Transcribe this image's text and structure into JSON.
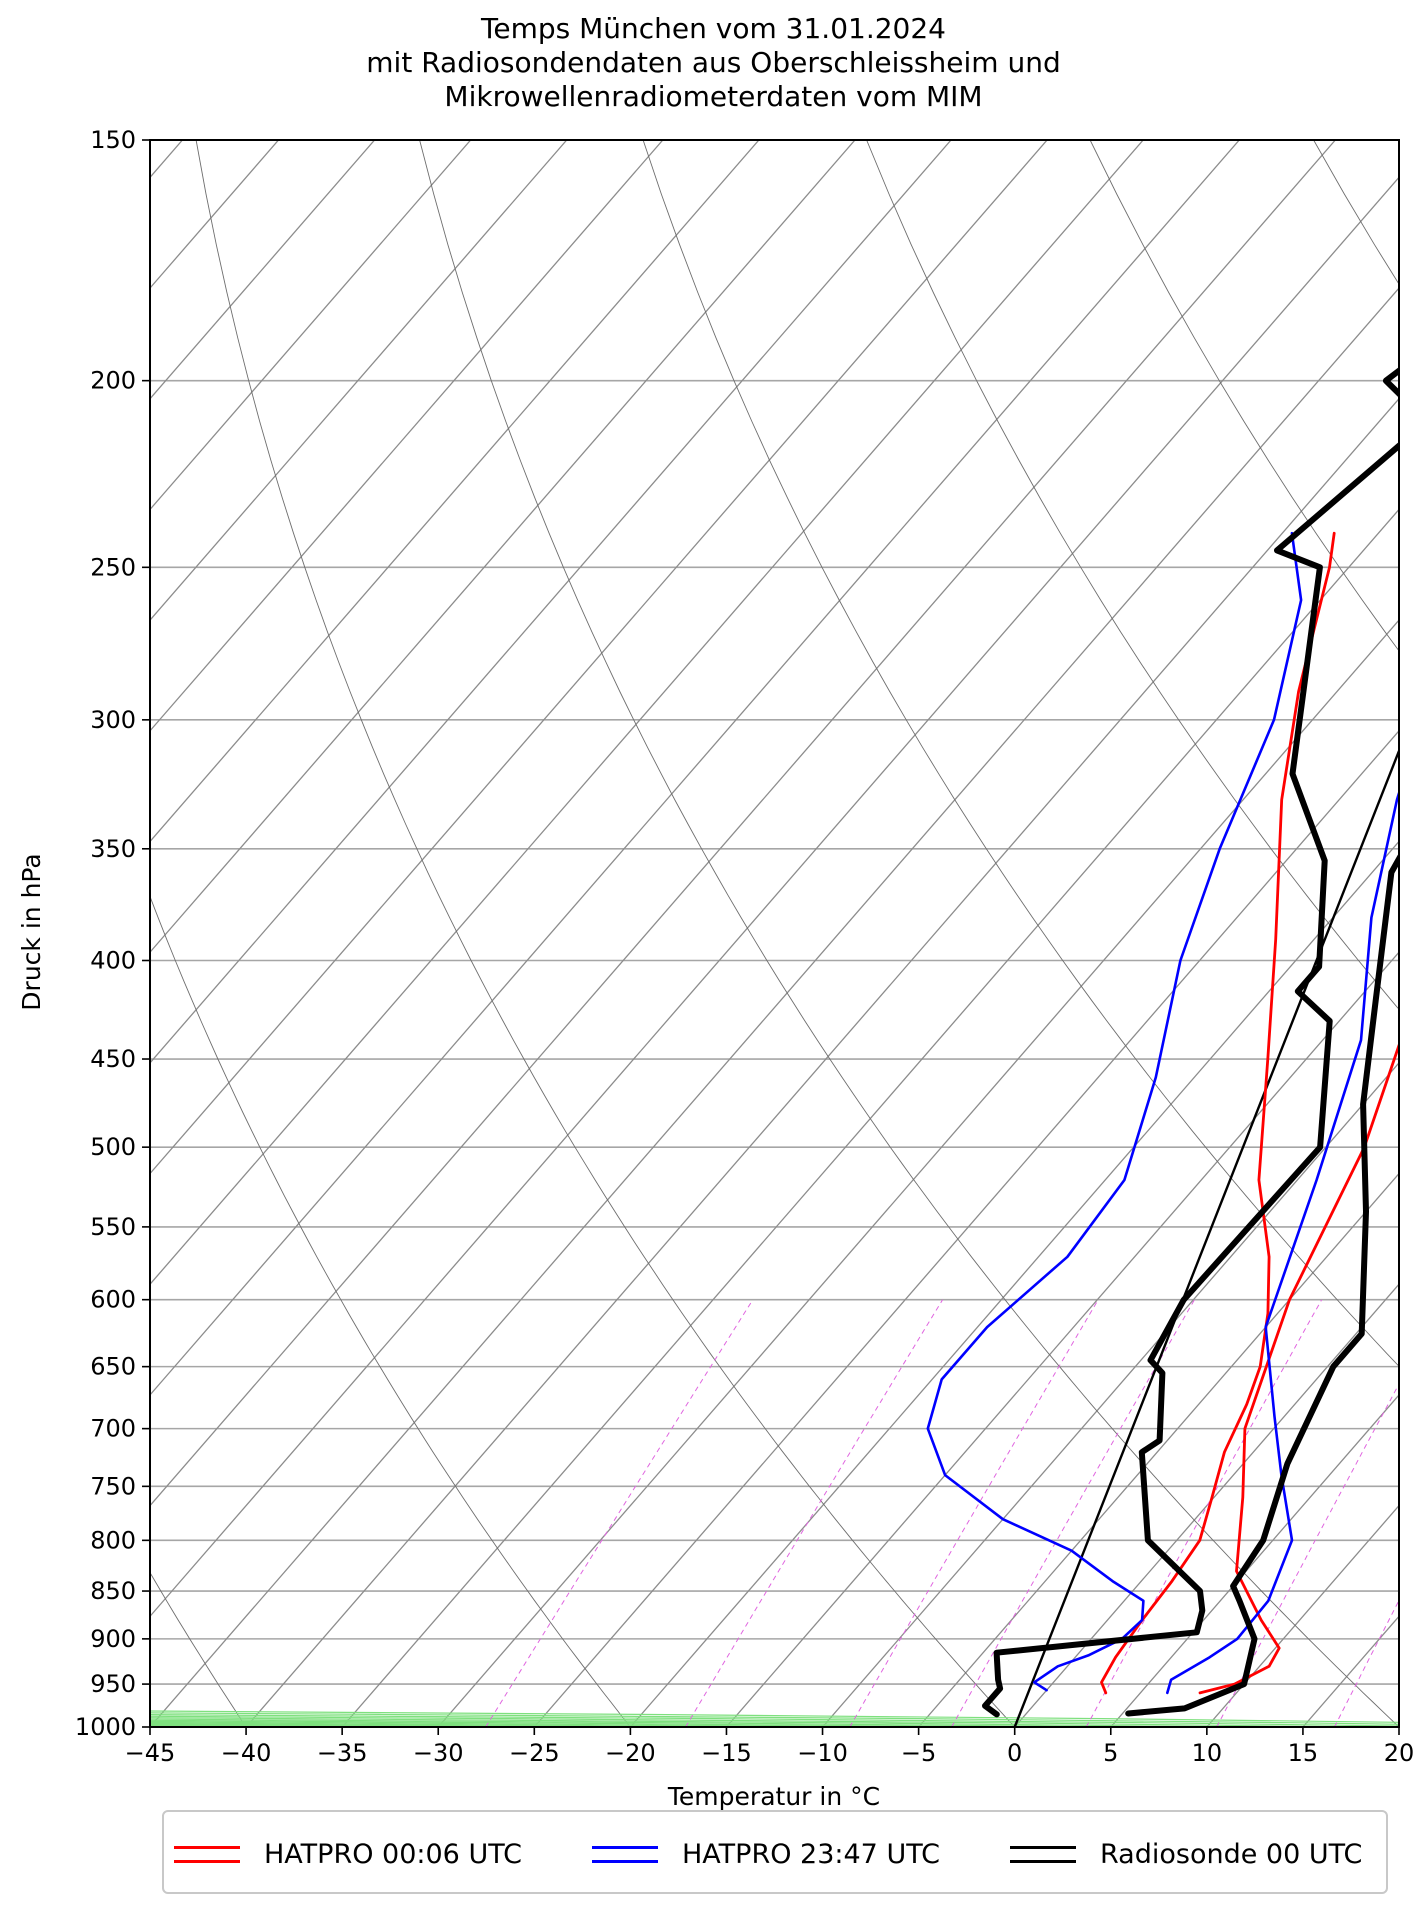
{
  "title_lines": [
    "Temps München vom 31.01.2024",
    "mit Radiosondendaten aus Oberschleissheim und",
    "Mikrowellenradiometerdaten vom MIM"
  ],
  "chart_data": {
    "type": "line",
    "subtype": "skew-T log-p diagram",
    "xlabel": "Temperatur in °C",
    "ylabel": "Druck in hPa",
    "xlim": [
      -45,
      20
    ],
    "ylim": [
      1000,
      150
    ],
    "y_scale": "log",
    "x_ticks": [
      "−45",
      "−40",
      "−35",
      "−30",
      "−25",
      "−20",
      "−15",
      "−10",
      "−5",
      "0",
      "5",
      "10",
      "15",
      "20"
    ],
    "y_ticks": [
      "150",
      "200",
      "250",
      "300",
      "350",
      "400",
      "450",
      "500",
      "550",
      "600",
      "650",
      "700",
      "750",
      "800",
      "850",
      "900",
      "950",
      "1000"
    ],
    "grid": true,
    "legend_position": "bottom",
    "series": [
      {
        "name": "HATPRO 00:06 UTC",
        "color": "#ff0000",
        "profiles": [
          {
            "label": "temperature",
            "points": [
              [
                3.2,
                960
              ],
              [
                2.5,
                948
              ],
              [
                2.1,
                920
              ],
              [
                1.8,
                880
              ],
              [
                1.6,
                840
              ],
              [
                1.2,
                800
              ],
              [
                -0.1,
                760
              ],
              [
                -1.5,
                720
              ],
              [
                -2.5,
                680
              ],
              [
                -3.5,
                650
              ],
              [
                -5.5,
                610
              ],
              [
                -8.0,
                570
              ],
              [
                -12,
                520
              ],
              [
                -17,
                450
              ],
              [
                -22,
                390
              ],
              [
                -28,
                330
              ],
              [
                -32,
                290
              ],
              [
                -36,
                250
              ],
              [
                -37.3,
                240
              ]
            ]
          },
          {
            "label": "dewpoint",
            "points": [
              [
                8.1,
                960
              ],
              [
                9.5,
                950
              ],
              [
                10.5,
                930
              ],
              [
                10.2,
                910
              ],
              [
                8.0,
                880
              ],
              [
                4.5,
                830
              ],
              [
                1.5,
                760
              ],
              [
                -1.5,
                700
              ],
              [
                -5,
                600
              ],
              [
                -8,
                500
              ],
              [
                -12,
                420
              ],
              [
                -17,
                350
              ],
              [
                -21,
                300
              ],
              [
                -27,
                250
              ],
              [
                -29.2,
                240
              ]
            ]
          }
        ]
      },
      {
        "name": "HATPRO 23:47 UTC",
        "color": "#0000ff",
        "profiles": [
          {
            "label": "temperature",
            "points": [
              [
                0.0,
                957
              ],
              [
                -1.0,
                948
              ],
              [
                -0.5,
                930
              ],
              [
                0.6,
                918
              ],
              [
                1.6,
                900
              ],
              [
                1.8,
                880
              ],
              [
                1.0,
                860
              ],
              [
                -1.5,
                840
              ],
              [
                -5,
                810
              ],
              [
                -10,
                780
              ],
              [
                -15,
                740
              ],
              [
                -18,
                700
              ],
              [
                -19.5,
                660
              ],
              [
                -19.5,
                620
              ],
              [
                -18.5,
                570
              ],
              [
                -19,
                520
              ],
              [
                -22,
                460
              ],
              [
                -26,
                400
              ],
              [
                -29,
                350
              ],
              [
                -32,
                300
              ],
              [
                -36,
                260
              ],
              [
                -39.5,
                240
              ]
            ]
          },
          {
            "label": "dewpoint",
            "points": [
              [
                6.4,
                960
              ],
              [
                6.0,
                945
              ],
              [
                7.0,
                920
              ],
              [
                7.6,
                900
              ],
              [
                7.5,
                860
              ],
              [
                6.0,
                800
              ],
              [
                2.5,
                740
              ],
              [
                -0.5,
                690
              ],
              [
                -5,
                620
              ],
              [
                -9,
                520
              ],
              [
                -13,
                440
              ],
              [
                -18,
                380
              ],
              [
                -22,
                330
              ],
              [
                -26,
                280
              ],
              [
                -29,
                250
              ],
              [
                -29.6,
                240
              ]
            ]
          }
        ]
      },
      {
        "name": "Radiosonde 00 UTC",
        "color": "#000000",
        "profiles": [
          {
            "label": "temperature",
            "points": [
              [
                -1.5,
                985
              ],
              [
                -2.5,
                975
              ],
              [
                -2.5,
                955
              ],
              [
                -3.0,
                945
              ],
              [
                -4.3,
                915
              ],
              [
                5.2,
                893
              ],
              [
                4.5,
                870
              ],
              [
                3.5,
                850
              ],
              [
                -1.5,
                800
              ],
              [
                -5.8,
                720
              ],
              [
                -5.4,
                710
              ],
              [
                -8.3,
                655
              ],
              [
                -9.5,
                645
              ],
              [
                -10.5,
                600
              ],
              [
                -10.3,
                500
              ],
              [
                -15.5,
                430
              ],
              [
                -18.5,
                415
              ],
              [
                -18.5,
                403
              ],
              [
                -23,
                355
              ],
              [
                -28.6,
                320
              ],
              [
                -36.5,
                250
              ],
              [
                -39.5,
                245
              ],
              [
                -37.5,
                210
              ],
              [
                -41.5,
                200
              ],
              [
                -41,
                195
              ]
            ]
          },
          {
            "label": "dewpoint",
            "points": [
              [
                5.3,
                984
              ],
              [
                8,
                978
              ],
              [
                10,
                950
              ],
              [
                8.5,
                900
              ],
              [
                6,
                860
              ],
              [
                5.0,
                845
              ],
              [
                4.5,
                800
              ],
              [
                2.3,
                730
              ],
              [
                0.3,
                650
              ],
              [
                0.3,
                625
              ],
              [
                -5,
                540
              ],
              [
                -10,
                475
              ],
              [
                -14,
                420
              ],
              [
                -19,
                360
              ],
              [
                -21,
                310
              ],
              [
                -28.5,
                240
              ],
              [
                -29,
                210
              ],
              [
                -26,
                200
              ],
              [
                -15,
                160
              ],
              [
                -12,
                150
              ]
            ]
          }
        ]
      }
    ]
  },
  "legend": [
    {
      "label": "HATPRO 00:06 UTC",
      "color": "#ff0000"
    },
    {
      "label": "HATPRO 23:47 UTC",
      "color": "#0000ff"
    },
    {
      "label": "Radiosonde 00 UTC",
      "color": "#000000"
    }
  ]
}
